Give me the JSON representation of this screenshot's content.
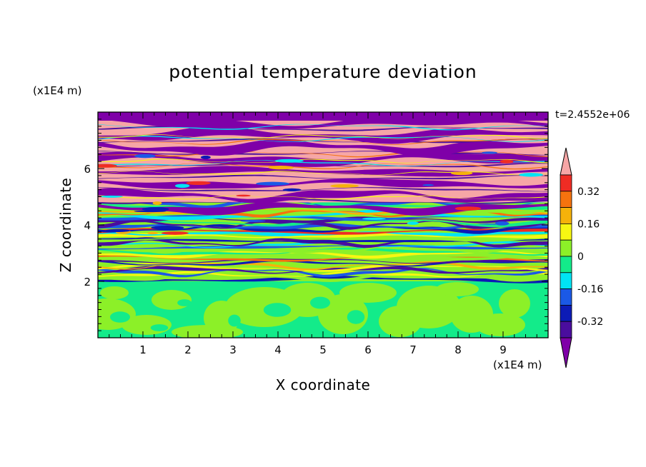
{
  "title": "potential temperature deviation",
  "time_label": "t=2.4552e+06",
  "colors": {
    "levels": [
      "#7f00a8",
      "#4a0d9e",
      "#0c1bb6",
      "#1b59e6",
      "#00e4f4",
      "#13eb8a",
      "#8cf028",
      "#f7f712",
      "#f6b20a",
      "#f5730e",
      "#ef2c24",
      "#f6a6a6"
    ],
    "axis": "#000000"
  },
  "chart_data": {
    "type": "heatmap",
    "title": "potential temperature deviation",
    "xlabel": "X coordinate",
    "ylabel": "Z coordinate",
    "x_unit": "(x1E4 m)",
    "y_unit": "(x1E4 m)",
    "xlim": [
      0,
      10
    ],
    "ylim": [
      0,
      8
    ],
    "x_ticks": [
      1,
      2,
      3,
      4,
      5,
      6,
      7,
      8,
      9
    ],
    "y_ticks": [
      2,
      4,
      6
    ],
    "colorbar": {
      "ticks": [
        "0.32",
        "0.16",
        "0",
        "-0.16",
        "-0.32"
      ],
      "tick_values": [
        0.32,
        0.16,
        0,
        -0.16,
        -0.32
      ],
      "interval": 0.08,
      "extend": "both",
      "placement": "right"
    },
    "field_description_layers": {
      "lower_layer_top": 2,
      "lower_layer_values": [
        -0.04,
        0.04
      ],
      "upper_layer_bands_z": [
        2.0,
        8.0
      ],
      "upper_layer_range": [
        -0.48,
        0.48
      ]
    }
  }
}
